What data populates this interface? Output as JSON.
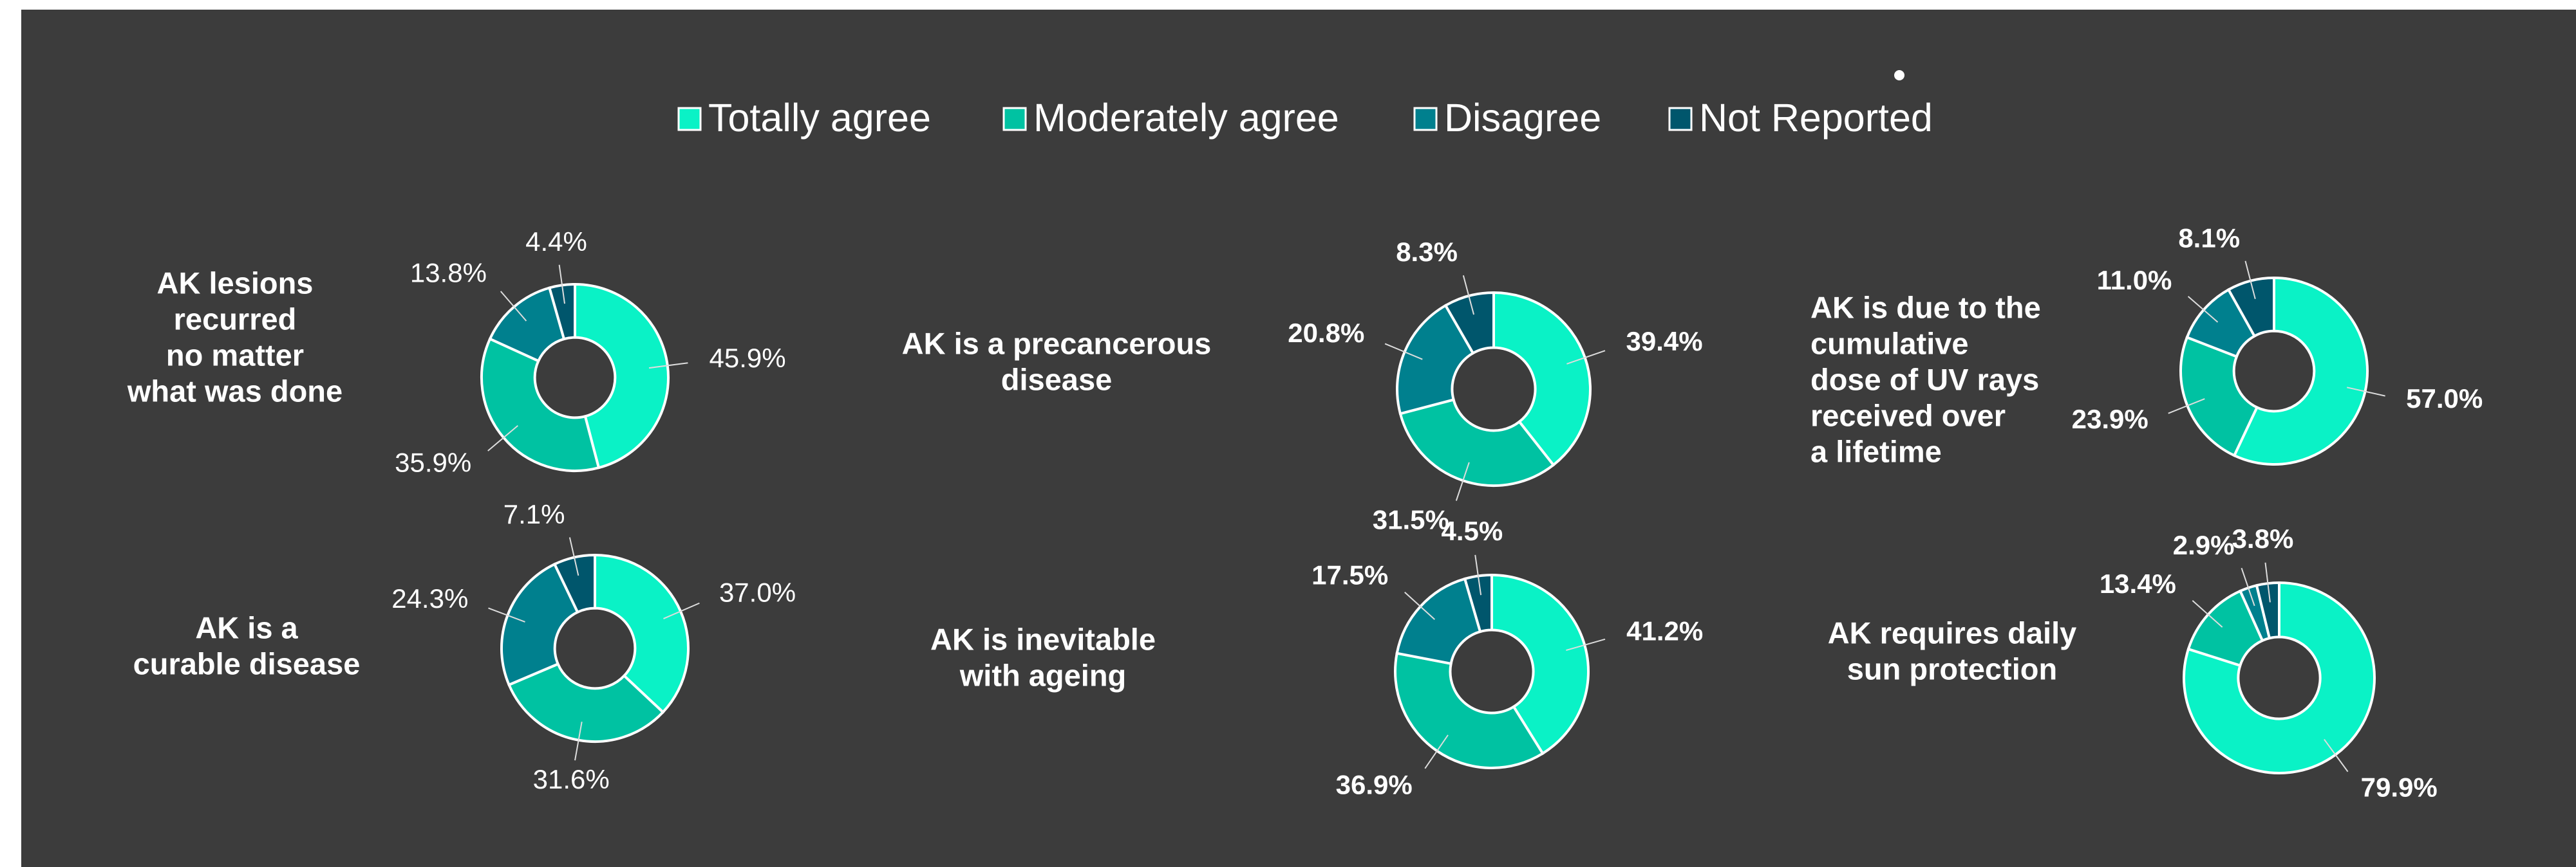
{
  "legend": {
    "names": [
      "Totally agree",
      "Moderately agree",
      "Disagree",
      "Not Reported"
    ],
    "colors": [
      "#0af2c6",
      "#00c2a2",
      "#00808e",
      "#00566c"
    ]
  },
  "chart_data": [
    {
      "type": "donut",
      "title": [
        "AK lesions",
        "recurred",
        "no matter",
        "what was done"
      ],
      "values": [
        45.9,
        35.9,
        13.8,
        4.4
      ],
      "value_labels": [
        "45.9%",
        "35.9%",
        "13.8%",
        "4.4%"
      ]
    },
    {
      "type": "donut",
      "title": [
        "AK is a precancerous",
        "disease"
      ],
      "values": [
        39.4,
        31.5,
        20.8,
        8.3
      ],
      "value_labels": [
        "39.4%",
        "31.5%",
        "20.8%",
        "8.3%"
      ]
    },
    {
      "type": "donut",
      "title": [
        "AK is due to the",
        "cumulative",
        "dose of UV rays",
        "received over",
        "a lifetime"
      ],
      "values": [
        57.0,
        23.9,
        11.0,
        8.1
      ],
      "value_labels": [
        "57.0%",
        "23.9%",
        "11.0%",
        "8.1%"
      ]
    },
    {
      "type": "donut",
      "title": [
        "AK is a",
        "curable disease"
      ],
      "values": [
        37.0,
        31.6,
        24.3,
        7.1
      ],
      "value_labels": [
        "37.0%",
        "31.6%",
        "24.3%",
        "7.1%"
      ]
    },
    {
      "type": "donut",
      "title": [
        "AK is inevitable",
        "with ageing"
      ],
      "values": [
        41.2,
        36.9,
        17.5,
        4.5
      ],
      "value_labels": [
        "41.2%",
        "36.9%",
        "17.5%",
        "4.5%"
      ]
    },
    {
      "type": "donut",
      "title": [
        "AK requires daily",
        "sun protection"
      ],
      "values": [
        79.9,
        13.4,
        2.9,
        3.8
      ],
      "value_labels": [
        "79.9%",
        "13.4%",
        "2.9%",
        "3.8%"
      ]
    }
  ]
}
